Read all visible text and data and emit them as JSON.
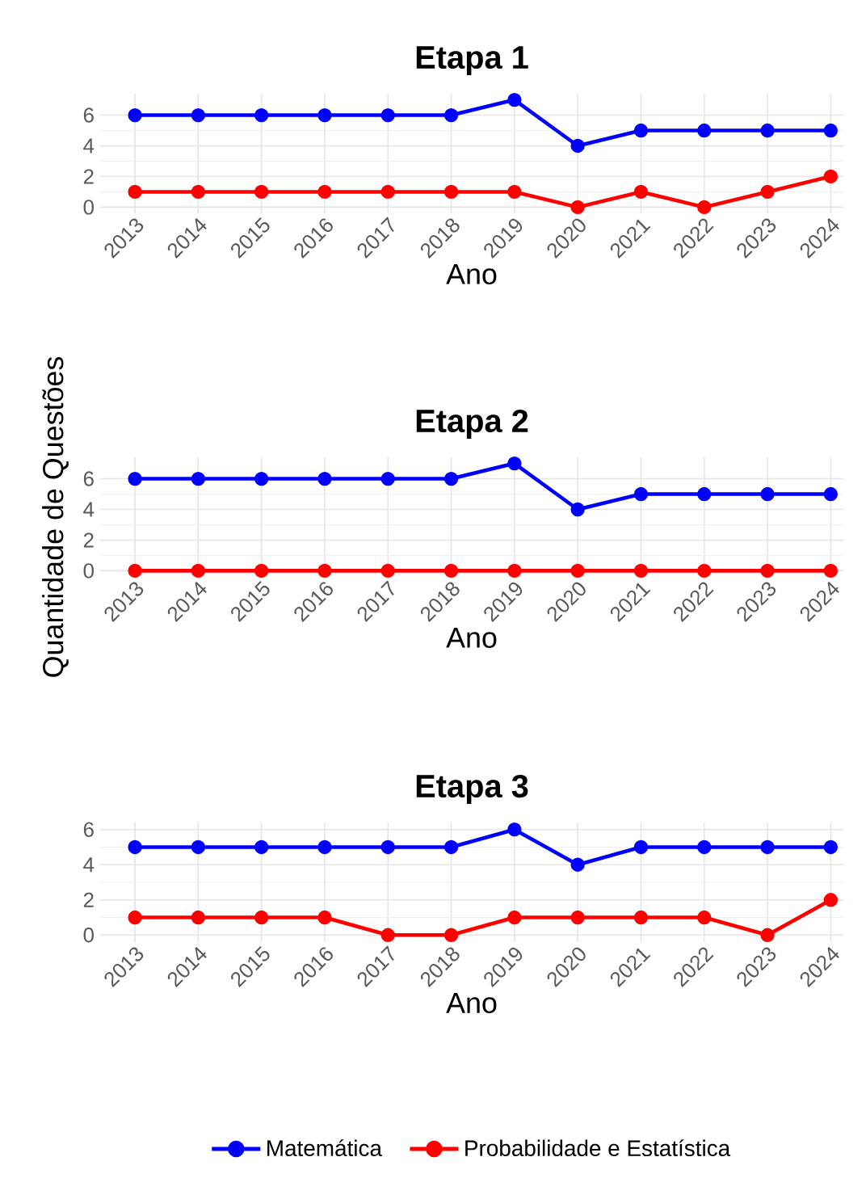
{
  "chart_data": [
    {
      "type": "line",
      "title": "Etapa 1",
      "xlabel": "Ano",
      "categories": [
        "2013",
        "2014",
        "2015",
        "2016",
        "2017",
        "2018",
        "2019",
        "2020",
        "2021",
        "2022",
        "2023",
        "2024"
      ],
      "series": [
        {
          "color": "#0000ff",
          "values": [
            6,
            6,
            6,
            6,
            6,
            6,
            7,
            4,
            5,
            5,
            5,
            5
          ]
        },
        {
          "color": "#ff0000",
          "values": [
            1,
            1,
            1,
            1,
            1,
            1,
            1,
            0,
            1,
            0,
            1,
            2
          ]
        }
      ],
      "ylim": [
        -0.4,
        7.4
      ],
      "yticks": [
        0,
        2,
        4,
        6
      ],
      "grid": true,
      "marker": "circle",
      "line_style": "solid"
    },
    {
      "type": "line",
      "title": "Etapa 2",
      "xlabel": "Ano",
      "ylabel": "Quantidade de Questões",
      "categories": [
        "2013",
        "2014",
        "2015",
        "2016",
        "2017",
        "2018",
        "2019",
        "2020",
        "2021",
        "2022",
        "2023",
        "2024"
      ],
      "series": [
        {
          "color": "#0000ff",
          "values": [
            6,
            6,
            6,
            6,
            6,
            6,
            7,
            4,
            5,
            5,
            5,
            5
          ]
        },
        {
          "color": "#ff0000",
          "values": [
            0,
            0,
            0,
            0,
            0,
            0,
            0,
            0,
            0,
            0,
            0,
            0
          ]
        }
      ],
      "ylim": [
        -0.4,
        7.4
      ],
      "yticks": [
        0,
        2,
        4,
        6
      ],
      "grid": true,
      "marker": "circle",
      "line_style": "solid"
    },
    {
      "type": "line",
      "title": "Etapa 3",
      "xlabel": "Ano",
      "categories": [
        "2013",
        "2014",
        "2015",
        "2016",
        "2017",
        "2018",
        "2019",
        "2020",
        "2021",
        "2022",
        "2023",
        "2024"
      ],
      "series": [
        {
          "name": "Matemática",
          "color": "#0000ff",
          "values": [
            5,
            5,
            5,
            5,
            5,
            5,
            6,
            4,
            5,
            5,
            5,
            5
          ]
        },
        {
          "name": "Probabilidade e Estatística",
          "color": "#ff0000",
          "values": [
            1,
            1,
            1,
            1,
            0,
            0,
            1,
            1,
            1,
            1,
            0,
            2
          ]
        }
      ],
      "ylim": [
        -0.4,
        6.4
      ],
      "yticks": [
        0,
        2,
        4,
        6
      ],
      "grid": true,
      "marker": "circle",
      "line_style": "solid",
      "legend": "bottom"
    }
  ]
}
